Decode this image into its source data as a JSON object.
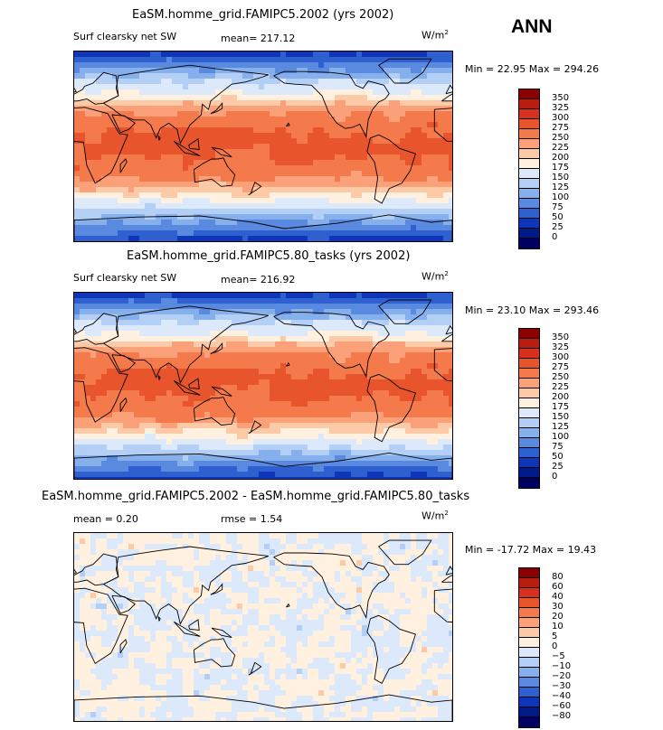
{
  "season": "ANN",
  "chart_data": [
    {
      "type": "heatmap",
      "title": "EaSM.homme_grid.FAMIPC5.2002 (yrs 2002)",
      "left_label": "Surf clearsky net SW",
      "mean_label": "mean= 217.12",
      "units_text": "W/m",
      "units_exp": "2",
      "minmax": "Min =  22.95 Max = 294.26",
      "min": 22.95,
      "max": 294.26,
      "mean": 217.12,
      "levels": [
        "350",
        "325",
        "300",
        "275",
        "250",
        "225",
        "200",
        "175",
        "150",
        "125",
        "100",
        "75",
        "50",
        "25",
        "0"
      ],
      "colors": [
        "#8b0000",
        "#b81d0f",
        "#d7301f",
        "#e8552c",
        "#f47a4c",
        "#fba17a",
        "#fdcaa8",
        "#fff0e0",
        "#dce9fb",
        "#b3cff5",
        "#86b0ec",
        "#5a8ae0",
        "#2f60d0",
        "#0f35b8",
        "#001a8a",
        "#000060"
      ],
      "field": "sw"
    },
    {
      "type": "heatmap",
      "title": "EaSM.homme_grid.FAMIPC5.80_tasks (yrs 2002)",
      "left_label": "Surf clearsky net SW",
      "mean_label": "mean= 216.92",
      "units_text": "W/m",
      "units_exp": "2",
      "minmax": "Min =  23.10 Max = 293.46",
      "min": 23.1,
      "max": 293.46,
      "mean": 216.92,
      "levels": [
        "350",
        "325",
        "300",
        "275",
        "250",
        "225",
        "200",
        "175",
        "150",
        "125",
        "100",
        "75",
        "50",
        "25",
        "0"
      ],
      "colors": [
        "#8b0000",
        "#b81d0f",
        "#d7301f",
        "#e8552c",
        "#f47a4c",
        "#fba17a",
        "#fdcaa8",
        "#fff0e0",
        "#dce9fb",
        "#b3cff5",
        "#86b0ec",
        "#5a8ae0",
        "#2f60d0",
        "#0f35b8",
        "#001a8a",
        "#000060"
      ],
      "field": "sw"
    },
    {
      "type": "heatmap",
      "title": "EaSM.homme_grid.FAMIPC5.2002 - EaSM.homme_grid.FAMIPC5.80_tasks",
      "left_label": "mean =    0.20",
      "mean_label": "rmse =    1.54",
      "units_text": "W/m",
      "units_exp": "2",
      "minmax": "Min = -17.72 Max =  19.43",
      "min": -17.72,
      "max": 19.43,
      "mean": 0.2,
      "rmse": 1.54,
      "levels": [
        "80",
        "60",
        "40",
        "30",
        "20",
        "10",
        "5",
        "0",
        "−5",
        "−10",
        "−20",
        "−30",
        "−40",
        "−60",
        "−80"
      ],
      "colors": [
        "#8b0000",
        "#b81d0f",
        "#d7301f",
        "#e8552c",
        "#f47a4c",
        "#fba17a",
        "#fdcaa8",
        "#fff0e0",
        "#dce9fb",
        "#b3cff5",
        "#86b0ec",
        "#5a8ae0",
        "#2f60d0",
        "#0f35b8",
        "#001a8a",
        "#000060"
      ],
      "field": "diff"
    }
  ]
}
